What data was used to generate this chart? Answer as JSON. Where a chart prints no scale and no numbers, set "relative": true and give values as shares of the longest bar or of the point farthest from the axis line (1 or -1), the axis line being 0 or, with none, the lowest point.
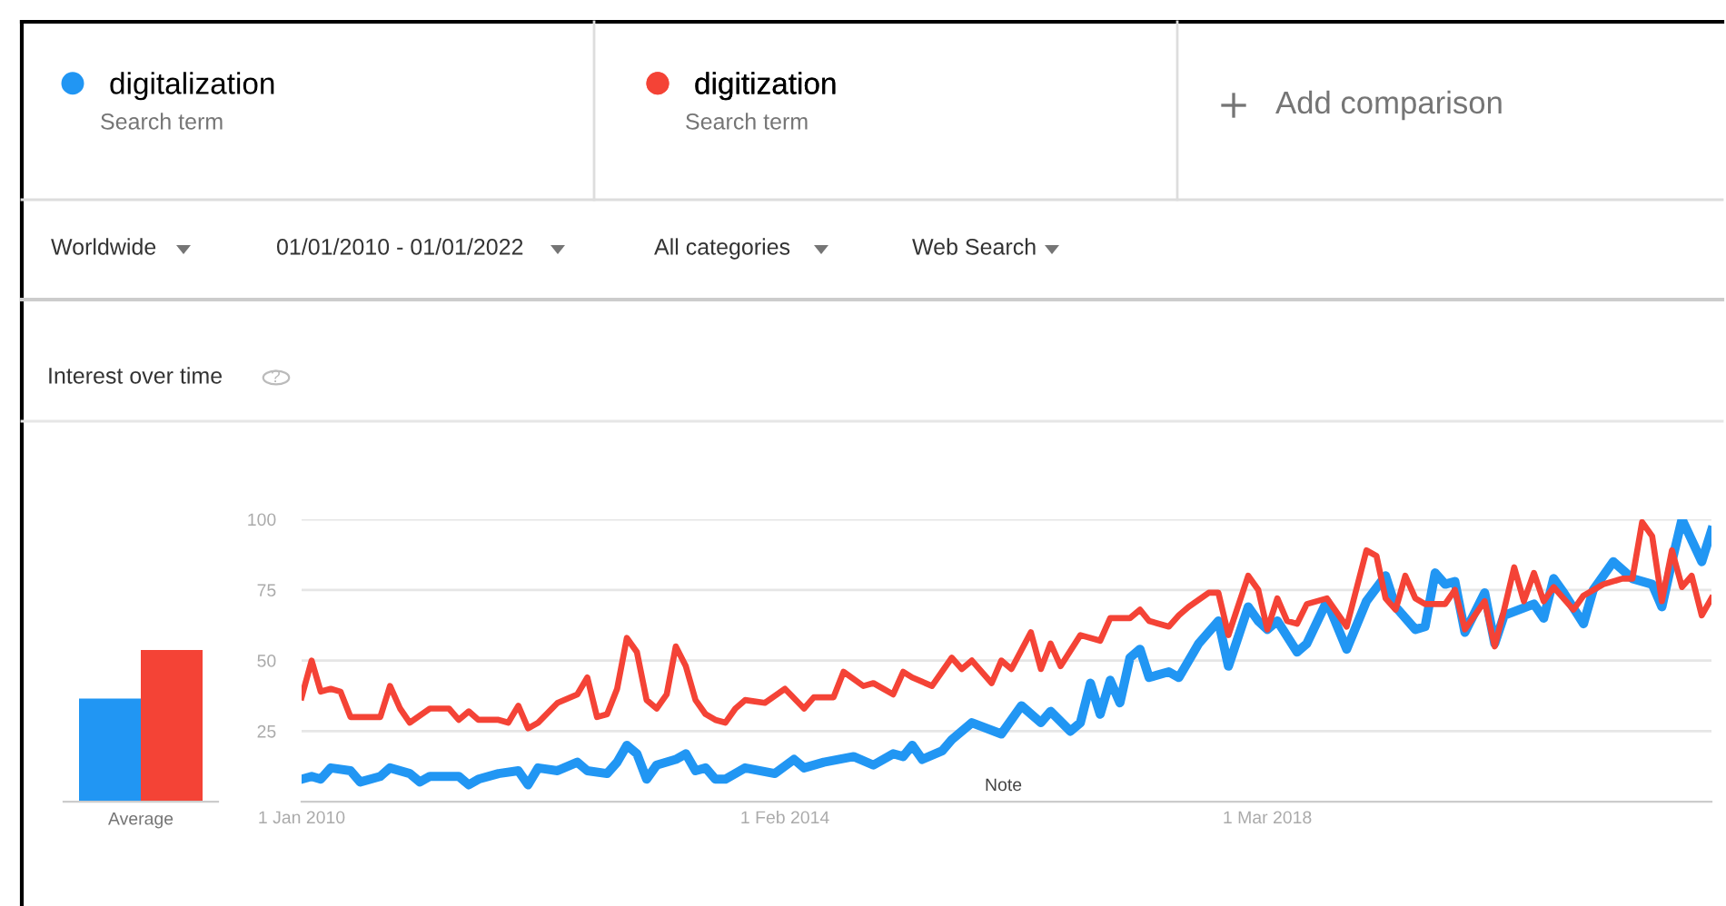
{
  "chart_data": [
    {
      "type": "bar",
      "categories": [
        "Average"
      ],
      "relative": true,
      "series": [
        {
          "color": "#2196f3",
          "values": [
            0.68
          ]
        },
        {
          "color": "#f44336",
          "values": [
            1
          ]
        }
      ]
    },
    {
      "type": "line",
      "title": "Interest over time",
      "xlim": [
        "2010-01",
        "2021-12"
      ],
      "ylim": [
        0,
        100
      ],
      "yticks": [
        25,
        50,
        75,
        100
      ],
      "xticks": [
        {
          "value": "2010-01-01",
          "label": "1 Jan 2010"
        },
        {
          "value": "2014-02-01",
          "label": "1 Feb 2014"
        },
        {
          "value": "2018-03-01",
          "label": "1 Mar 2018"
        }
      ],
      "grid": "y",
      "legend": "top left",
      "marker": "none",
      "line_style": "solid",
      "annotations": [
        "Search term",
        "Search term",
        "Add comparison",
        "Worldwide",
        "01/01/2010 - 01/01/2022",
        "All categories",
        "Web Search",
        "?",
        "Note"
      ],
      "series": [
        {
          "name": "digitalization",
          "color": "#2196f3",
          "x": [
            "2010-01",
            "2010-02",
            "2010-03",
            "2010-04",
            "2010-06",
            "2010-07",
            "2010-09",
            "2010-10",
            "2010-12",
            "2011-01",
            "2011-02",
            "2011-05",
            "2011-06",
            "2011-07",
            "2011-09",
            "2011-11",
            "2011-12",
            "2012-01",
            "2012-03",
            "2012-05",
            "2012-06",
            "2012-08",
            "2012-09",
            "2012-10",
            "2012-11",
            "2012-12",
            "2013-01",
            "2013-03",
            "2013-04",
            "2013-05",
            "2013-06",
            "2013-07",
            "2013-08",
            "2013-10",
            "2014-01",
            "2014-03",
            "2014-04",
            "2014-06",
            "2014-09",
            "2014-11",
            "2015-01",
            "2015-02",
            "2015-03",
            "2015-04",
            "2015-06",
            "2015-07",
            "2015-09",
            "2015-12",
            "2016-02",
            "2016-04",
            "2016-05",
            "2016-07",
            "2016-08",
            "2016-09",
            "2016-10",
            "2016-11",
            "2016-12",
            "2017-01",
            "2017-02",
            "2017-03",
            "2017-05",
            "2017-06",
            "2017-08",
            "2017-10",
            "2017-11",
            "2018-01",
            "2018-02",
            "2018-03",
            "2018-04",
            "2018-06",
            "2018-07",
            "2018-09",
            "2018-11",
            "2019-01",
            "2019-03",
            "2019-04",
            "2019-06",
            "2019-07",
            "2019-08",
            "2019-09",
            "2019-10",
            "2019-11",
            "2020-01",
            "2020-02",
            "2020-03",
            "2020-06",
            "2020-07",
            "2020-08",
            "2020-09",
            "2020-11",
            "2020-12",
            "2021-02",
            "2021-04",
            "2021-06",
            "2021-07",
            "2021-08",
            "2021-09",
            "2021-11",
            "2021-12"
          ],
          "values": [
            8,
            9,
            8,
            12,
            11,
            7,
            9,
            12,
            10,
            7,
            9,
            9,
            6,
            8,
            10,
            11,
            6,
            12,
            11,
            14,
            11,
            10,
            14,
            20,
            17,
            8,
            13,
            15,
            17,
            11,
            12,
            8,
            8,
            12,
            10,
            15,
            12,
            14,
            16,
            13,
            17,
            16,
            20,
            15,
            18,
            22,
            28,
            24,
            34,
            28,
            32,
            25,
            28,
            42,
            31,
            43,
            35,
            51,
            54,
            44,
            46,
            44,
            56,
            64,
            48,
            69,
            64,
            61,
            64,
            53,
            56,
            71,
            54,
            71,
            80,
            69,
            61,
            62,
            81,
            77,
            78,
            60,
            74,
            56,
            66,
            70,
            65,
            79,
            74,
            63,
            75,
            85,
            79,
            77,
            69,
            85,
            100,
            85,
            96
          ]
        },
        {
          "name": "digitization",
          "color": "#f44336",
          "x": [
            "2010-01",
            "2010-02",
            "2010-03",
            "2010-04",
            "2010-05",
            "2010-06",
            "2010-09",
            "2010-10",
            "2010-11",
            "2010-12",
            "2011-02",
            "2011-04",
            "2011-05",
            "2011-06",
            "2011-07",
            "2011-09",
            "2011-10",
            "2011-11",
            "2011-12",
            "2012-01",
            "2012-03",
            "2012-05",
            "2012-06",
            "2012-07",
            "2012-08",
            "2012-09",
            "2012-10",
            "2012-11",
            "2012-12",
            "2013-01",
            "2013-02",
            "2013-03",
            "2013-04",
            "2013-05",
            "2013-06",
            "2013-07",
            "2013-08",
            "2013-09",
            "2013-10",
            "2013-12",
            "2014-02",
            "2014-04",
            "2014-05",
            "2014-07",
            "2014-08",
            "2014-10",
            "2014-11",
            "2015-01",
            "2015-02",
            "2015-03",
            "2015-05",
            "2015-07",
            "2015-08",
            "2015-09",
            "2015-11",
            "2015-12",
            "2016-01",
            "2016-03",
            "2016-04",
            "2016-05",
            "2016-06",
            "2016-08",
            "2016-10",
            "2016-11",
            "2017-01",
            "2017-02",
            "2017-03",
            "2017-05",
            "2017-06",
            "2017-07",
            "2017-09",
            "2017-10",
            "2017-11",
            "2018-01",
            "2018-02",
            "2018-03",
            "2018-04",
            "2018-05",
            "2018-06",
            "2018-07",
            "2018-09",
            "2018-11",
            "2019-01",
            "2019-02",
            "2019-03",
            "2019-04",
            "2019-05",
            "2019-06",
            "2019-07",
            "2019-09",
            "2019-10",
            "2019-11",
            "2020-01",
            "2020-02",
            "2020-03",
            "2020-04",
            "2020-05",
            "2020-06",
            "2020-07",
            "2020-08",
            "2020-10",
            "2020-11",
            "2021-01",
            "2021-03",
            "2021-04",
            "2021-05",
            "2021-06",
            "2021-07",
            "2021-08",
            "2021-09",
            "2021-10",
            "2021-11",
            "2021-12"
          ],
          "values": [
            37,
            50,
            39,
            40,
            39,
            30,
            30,
            41,
            33,
            28,
            33,
            33,
            29,
            32,
            29,
            29,
            28,
            34,
            26,
            28,
            35,
            38,
            44,
            30,
            31,
            40,
            58,
            53,
            36,
            33,
            38,
            55,
            48,
            36,
            31,
            29,
            28,
            33,
            36,
            35,
            40,
            33,
            37,
            37,
            46,
            41,
            42,
            38,
            46,
            44,
            41,
            51,
            47,
            50,
            42,
            50,
            47,
            60,
            47,
            56,
            48,
            59,
            57,
            65,
            65,
            68,
            64,
            62,
            66,
            69,
            74,
            74,
            59,
            80,
            75,
            61,
            72,
            64,
            63,
            70,
            72,
            62,
            89,
            87,
            72,
            68,
            80,
            72,
            70,
            70,
            75,
            61,
            71,
            55,
            68,
            83,
            71,
            81,
            71,
            76,
            68,
            73,
            77,
            79,
            79,
            99,
            94,
            71,
            89,
            76,
            80,
            66,
            72
          ]
        }
      ]
    }
  ]
}
